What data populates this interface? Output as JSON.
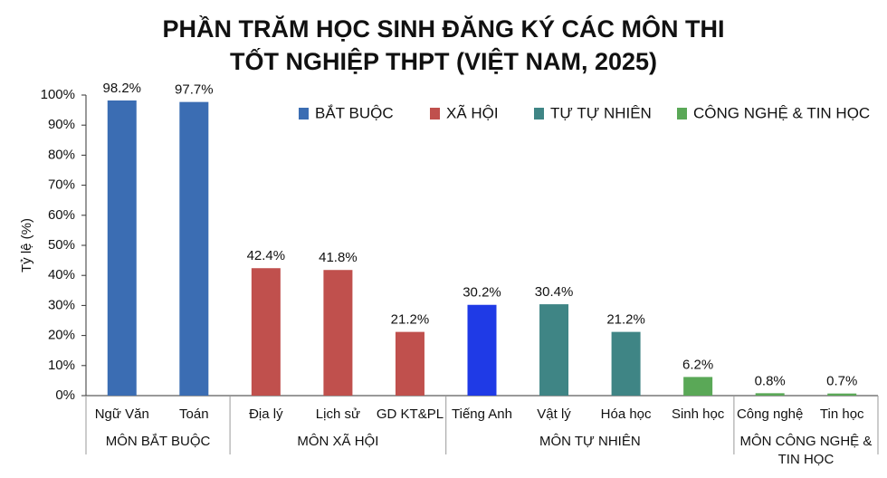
{
  "chart_data": {
    "type": "bar",
    "title": "PHẦN TRĂM HỌC SINH ĐĂNG KÝ CÁC MÔN THI TỐT NGHIỆP THPT (VIỆT NAM, 2025)",
    "y_label": "Tỷ lệ (%)",
    "ylim": [
      0,
      100
    ],
    "yticks": [
      {
        "value": 0,
        "label": "0%"
      },
      {
        "value": 10,
        "label": "10%"
      },
      {
        "value": 20,
        "label": "20%"
      },
      {
        "value": 30,
        "label": "30%"
      },
      {
        "value": 40,
        "label": "40%"
      },
      {
        "value": 50,
        "label": "50%"
      },
      {
        "value": 60,
        "label": "60%"
      },
      {
        "value": 70,
        "label": "70%"
      },
      {
        "value": 80,
        "label": "80%"
      },
      {
        "value": 90,
        "label": "90%"
      },
      {
        "value": 100,
        "label": "100%"
      }
    ],
    "legend": [
      {
        "name": "BẮT BUỘC",
        "color": "#3b6db3"
      },
      {
        "name": "XÃ HỘI",
        "color": "#c0504d"
      },
      {
        "name": "TỰ TỰ NHIÊN",
        "color": "#3f8585"
      },
      {
        "name": "CÔNG NGHỆ & TIN HỌC",
        "color": "#5aa857"
      }
    ],
    "groups": [
      {
        "label": "MÔN BẮT BUỘC",
        "categories": [
          "Ngữ Văn",
          "Toán"
        ],
        "values": [
          98.2,
          97.7
        ],
        "value_labels": [
          "98.2%",
          "97.7%"
        ],
        "colors": [
          "#3b6db3",
          "#3b6db3"
        ]
      },
      {
        "label": "MÔN XÃ HỘI",
        "categories": [
          "Địa lý",
          "Lịch sử",
          "GD KT&PL"
        ],
        "values": [
          42.4,
          41.8,
          21.2
        ],
        "value_labels": [
          "42.4%",
          "41.8%",
          "21.2%"
        ],
        "colors": [
          "#c0504d",
          "#c0504d",
          "#c0504d"
        ]
      },
      {
        "label": "MÔN TỰ NHIÊN",
        "categories": [
          "Tiếng Anh",
          "Vật lý",
          "Hóa học",
          "Sinh học"
        ],
        "values": [
          30.2,
          30.4,
          21.2,
          6.2
        ],
        "value_labels": [
          "30.2%",
          "30.4%",
          "21.2%",
          "6.2%"
        ],
        "colors": [
          "#1f3ae6",
          "#3f8585",
          "#3f8585",
          "#5aa857"
        ]
      },
      {
        "label": "MÔN CÔNG NGHỆ & TIN HỌC",
        "categories": [
          "Công nghệ",
          "Tin học"
        ],
        "values": [
          0.8,
          0.7
        ],
        "value_labels": [
          "0.8%",
          "0.7%"
        ],
        "colors": [
          "#5aa857",
          "#5aa857"
        ]
      }
    ]
  }
}
